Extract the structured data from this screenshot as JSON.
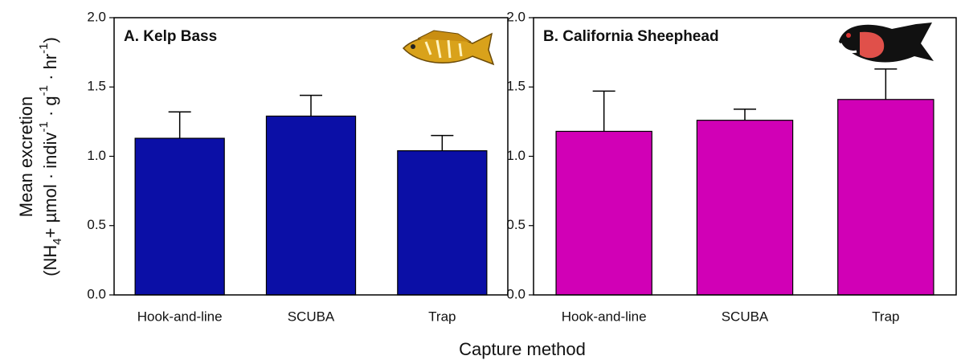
{
  "chart_data": [
    {
      "type": "bar",
      "title": "A. Kelp Bass",
      "categories": [
        "Hook-and-line",
        "SCUBA",
        "Trap"
      ],
      "values": [
        1.13,
        1.29,
        1.04
      ],
      "errors": [
        0.19,
        0.15,
        0.11
      ],
      "color": "#0b0fa6",
      "ylim": [
        0,
        2
      ],
      "yticks": [
        {
          "value": 0,
          "label": "0.0"
        },
        0.5,
        {
          "value": 1,
          "label": "1.0"
        },
        1.5,
        {
          "value": 2,
          "label": "2.0"
        }
      ]
    },
    {
      "type": "bar",
      "title": "B. California Sheephead",
      "categories": [
        "Hook-and-line",
        "SCUBA",
        "Trap"
      ],
      "values": [
        1.18,
        1.26,
        1.41
      ],
      "errors": [
        0.29,
        0.08,
        0.22
      ],
      "color": "#d100b6",
      "ylim": [
        0,
        2
      ],
      "yticks": [
        {
          "value": 0,
          "label": "0.0"
        },
        0.5,
        {
          "value": 1,
          "label": "1.0"
        },
        1.5,
        {
          "value": 2,
          "label": "2.0"
        }
      ]
    }
  ],
  "ylabel": "Mean excretion",
  "ylabel_units": [
    "(NH",
    "4",
    "+ µmol · indiv",
    "-1",
    " · g",
    "-1",
    " · hr",
    "-1",
    ")"
  ],
  "xlabel": "Capture method"
}
